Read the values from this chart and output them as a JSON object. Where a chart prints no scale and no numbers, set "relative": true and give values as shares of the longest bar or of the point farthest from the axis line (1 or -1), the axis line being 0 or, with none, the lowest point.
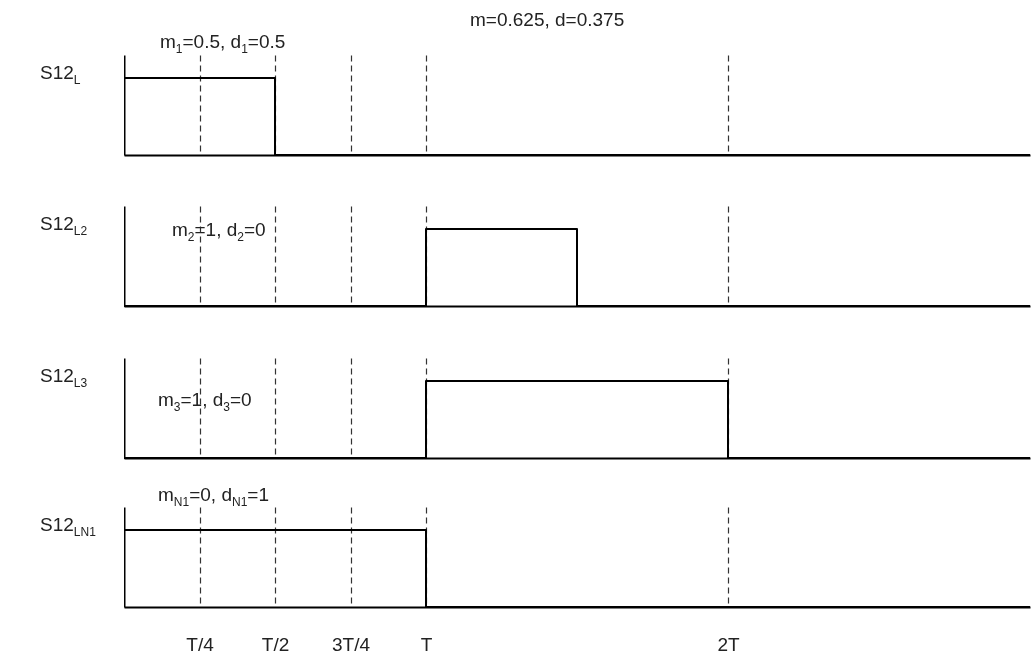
{
  "chart_data": [
    {
      "type": "step",
      "ylabel": "S12$_{L}$",
      "annotations": [
        "m$_{1}$=0.5, d$_{1}$=0.5",
        "m=0.625, d=0.375"
      ],
      "relative": true,
      "categories": [
        null,
        null,
        null,
        null,
        null,
        null,
        null,
        null,
        null,
        null,
        null,
        null,
        null
      ],
      "grid": "x",
      "marker": "none",
      "line_style": "solid",
      "series": [
        {
          "color": "#000000",
          "values": [
            1,
            1,
            0,
            0,
            0,
            0,
            0,
            0,
            0,
            0,
            0,
            0,
            0
          ]
        }
      ]
    },
    {
      "type": "step",
      "ylabel": "S12$_{L2}$",
      "annotations": [
        "m$_{2}$=1, d$_{2}$=0"
      ],
      "relative": true,
      "categories": [
        null,
        null,
        null,
        null,
        null,
        null,
        null,
        null,
        null,
        null,
        null,
        null,
        null
      ],
      "grid": "x",
      "marker": "none",
      "line_style": "solid",
      "series": [
        {
          "color": "#000000",
          "values": [
            0,
            0,
            0,
            0,
            1,
            1,
            0,
            0,
            0,
            0,
            0,
            0,
            0
          ]
        }
      ]
    },
    {
      "type": "step",
      "ylabel": "S12$_{L3}$",
      "annotations": [
        "m$_{3}$=1, d$_{3}$=0"
      ],
      "relative": true,
      "categories": [
        null,
        null,
        null,
        null,
        null,
        null,
        null,
        null,
        null,
        null,
        null,
        null,
        null
      ],
      "grid": "x",
      "marker": "none",
      "line_style": "solid",
      "series": [
        {
          "color": "#000000",
          "values": [
            0,
            0,
            0,
            0,
            1,
            1,
            1,
            1,
            0,
            0,
            0,
            0,
            0
          ]
        }
      ]
    },
    {
      "type": "step",
      "ylabel": "S12$_{LN1}$",
      "annotations": [
        "m$_{N1}$=0, d$_{N1}$=1"
      ],
      "relative": true,
      "categories": [
        null,
        "T/4",
        "T/2",
        "3T/4",
        "T",
        null,
        null,
        null,
        "2T",
        null,
        null,
        null,
        null
      ],
      "grid": "x",
      "marker": "none",
      "line_style": "solid",
      "series": [
        {
          "color": "#000000",
          "values": [
            1,
            1,
            1,
            1,
            0,
            0,
            0,
            0,
            0,
            0,
            0,
            0,
            0
          ]
        }
      ]
    }
  ]
}
